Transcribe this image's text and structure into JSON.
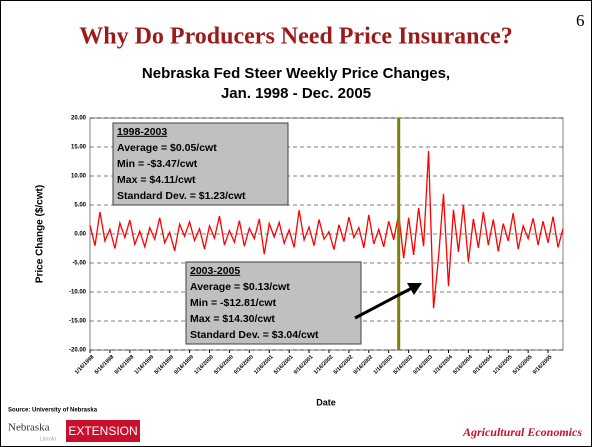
{
  "page_number": "6",
  "footer": {
    "source": "Source: University of Nebraska",
    "logo_left": "Nebraska",
    "logo_sub": "Lincoln",
    "logo_right": "EXTENSION",
    "brand": "Agricultural Economics"
  },
  "chart_data": {
    "type": "line",
    "title": "Why Do Producers Need Price Insurance?",
    "subtitle": [
      "Nebraska Fed Steer Weekly Price Changes,",
      "Jan. 1998 - Dec. 2005"
    ],
    "y_label": "Price Change ($/cwt)",
    "x_label": "Date",
    "color": "#ff0000",
    "grid": true,
    "vline_x": 62,
    "vline_color": "#808000",
    "values": [
      1.5,
      -2.0,
      3.8,
      -1.2,
      0.8,
      -2.5,
      1.9,
      -0.6,
      2.4,
      -1.8,
      0.5,
      -2.2,
      1.1,
      -0.9,
      2.8,
      -1.5,
      0.3,
      -2.9,
      1.7,
      -0.4,
      2.1,
      -1.1,
      0.9,
      -2.6,
      1.4,
      -0.7,
      3.1,
      -1.9,
      0.6,
      -1.4,
      2.3,
      -2.1,
      1.0,
      -0.8,
      2.6,
      -3.47,
      1.8,
      -0.5,
      2.0,
      -1.6,
      0.7,
      -2.3,
      4.11,
      -1.0,
      1.2,
      -2.0,
      2.5,
      -0.9,
      0.4,
      -2.7,
      1.6,
      -1.3,
      2.9,
      -0.6,
      1.1,
      -2.4,
      3.3,
      -1.7,
      0.8,
      -2.2,
      2.2,
      -1.0,
      3.5,
      -4.2,
      2.8,
      -3.6,
      4.5,
      -2.1,
      14.3,
      -12.81,
      -4.0,
      6.9,
      -9.0,
      4.2,
      -3.1,
      5.0,
      -4.8,
      2.6,
      -2.4,
      3.8,
      -1.9,
      2.5,
      -3.0,
      1.8,
      -1.2,
      3.6,
      -2.6,
      1.4,
      -0.8,
      2.7,
      -1.9,
      2.2,
      -1.5,
      3.0,
      -2.3,
      0.9
    ],
    "xlim": [
      0,
      95
    ],
    "xticks": [
      {
        "value": 0,
        "label": "1/16/1998"
      },
      {
        "value": 4,
        "label": "5/16/1998"
      },
      {
        "value": 8,
        "label": "9/16/1998"
      },
      {
        "value": 12,
        "label": "1/16/1999"
      },
      {
        "value": 16,
        "label": "5/16/1999"
      },
      {
        "value": 20,
        "label": "9/16/1999"
      },
      {
        "value": 24,
        "label": "1/16/2000"
      },
      {
        "value": 28,
        "label": "5/16/2000"
      },
      {
        "value": 32,
        "label": "9/16/2000"
      },
      {
        "value": 36,
        "label": "1/16/2001"
      },
      {
        "value": 40,
        "label": "5/16/2001"
      },
      {
        "value": 44,
        "label": "9/16/2001"
      },
      {
        "value": 48,
        "label": "1/16/2002"
      },
      {
        "value": 52,
        "label": "5/16/2002"
      },
      {
        "value": 56,
        "label": "9/16/2002"
      },
      {
        "value": 60,
        "label": "1/16/2003"
      },
      {
        "value": 64,
        "label": "5/16/2003"
      },
      {
        "value": 68,
        "label": "9/16/2003"
      },
      {
        "value": 72,
        "label": "1/16/2004"
      },
      {
        "value": 76,
        "label": "5/16/2004"
      },
      {
        "value": 80,
        "label": "9/16/2004"
      },
      {
        "value": 84,
        "label": "1/16/2005"
      },
      {
        "value": 88,
        "label": "5/16/2005"
      },
      {
        "value": 92,
        "label": "9/16/2005"
      }
    ],
    "ylim": [
      -20,
      20
    ],
    "yticks": [
      {
        "value": 20,
        "label": "20.00"
      },
      {
        "value": 15,
        "label": "15.00"
      },
      {
        "value": 10,
        "label": "10.00"
      },
      {
        "value": 5,
        "label": "5.00"
      },
      {
        "value": 0,
        "label": "0.00"
      },
      {
        "value": -5,
        "label": "-5.00"
      },
      {
        "value": -10,
        "label": "-10.00"
      },
      {
        "value": -15,
        "label": "-15.00"
      },
      {
        "value": -20,
        "label": "-20.00"
      }
    ],
    "annotations": [
      {
        "heading": "1998-2003",
        "lines": [
          "Average = $0.05/cwt",
          "Min = -$3.47/cwt",
          "Max = $4.11/cwt",
          "Standard Dev. = $1.23/cwt"
        ]
      },
      {
        "heading": "2003-2005",
        "lines": [
          "Average = $0.13/cwt",
          "Min = -$12.81/cwt",
          "Max = $14.30/cwt",
          "Standard Dev. = $3.04/cwt"
        ]
      }
    ]
  }
}
